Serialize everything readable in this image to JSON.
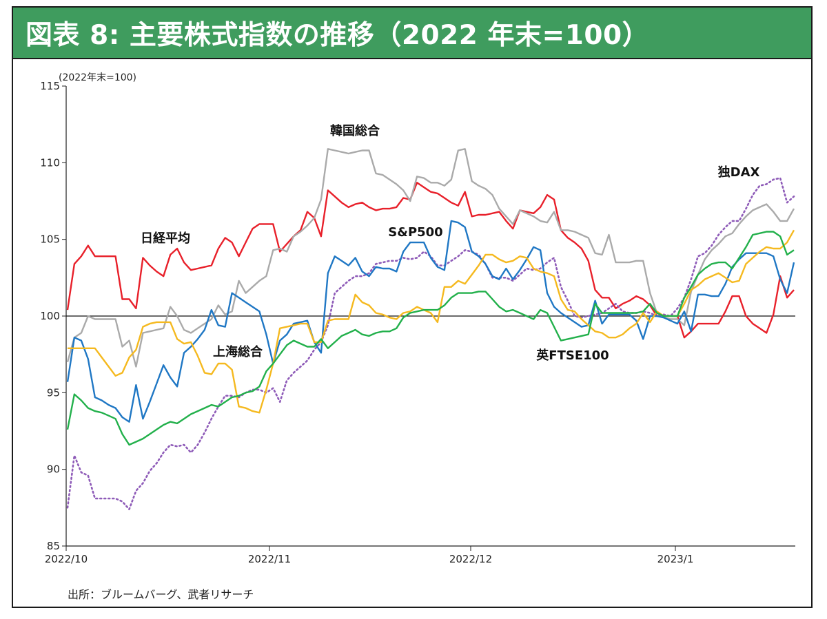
{
  "header": {
    "title": "図表 8: 主要株式指数の推移（2022 年末=100）"
  },
  "source": "出所：ブルームバーグ、武者リサーチ",
  "chart_data": {
    "type": "line",
    "unit_label": "(2022年末=100)",
    "ylim": [
      85,
      115
    ],
    "yticks": [
      "115",
      "110",
      "105",
      "100",
      "95",
      "90",
      "85"
    ],
    "x_tick_labels": [
      "2022/10",
      "2022/11",
      "2022/12",
      "2023/1"
    ],
    "baseline": 100,
    "annotations": [
      "韓国総合",
      "独DAX",
      "日経平均",
      "S&P500",
      "上海総合",
      "英FTSE100"
    ],
    "series": [
      {
        "name": "日経平均",
        "color": "#e8202a",
        "style": "solid",
        "values": [
          100.4,
          103.4,
          103.9,
          104.6,
          103.9,
          103.9,
          103.9,
          103.9,
          101.1,
          101.1,
          100.5,
          103.8,
          103.3,
          102.9,
          102.6,
          104.0,
          104.4,
          103.5,
          103.0,
          103.1,
          103.2,
          103.3,
          104.4,
          105.1,
          104.8,
          103.9,
          104.8,
          105.7,
          106.0,
          106.0,
          106.0,
          104.2,
          104.7,
          105.2,
          105.6,
          106.8,
          106.4,
          105.2,
          108.2,
          107.8,
          107.4,
          107.1,
          107.3,
          107.4,
          107.1,
          106.9,
          107.0,
          107.0,
          107.1,
          107.7,
          107.6,
          108.7,
          108.4,
          108.1,
          108.0,
          107.7,
          107.4,
          107.2,
          108.1,
          106.5,
          106.6,
          106.6,
          106.7,
          106.8,
          106.2,
          105.7,
          106.9,
          106.8,
          106.7,
          107.1,
          107.9,
          107.6,
          105.6,
          105.1,
          104.8,
          104.4,
          103.6,
          101.7,
          101.2,
          101.2,
          100.5,
          100.8,
          101.0,
          101.3,
          101.1,
          100.7,
          100.0,
          100.0,
          100.0,
          100.0,
          98.6,
          99.0,
          99.5,
          99.5,
          99.5,
          99.5,
          100.3,
          101.3,
          101.3,
          100.0,
          99.5,
          99.2,
          98.9,
          100.1,
          102.6,
          101.2,
          101.7
        ]
      },
      {
        "name": "韓国総合",
        "color": "#aaaaaa",
        "style": "solid",
        "values": [
          97.0,
          98.6,
          98.9,
          100.0,
          99.8,
          99.8,
          99.8,
          99.8,
          98.0,
          98.4,
          96.7,
          98.9,
          99.0,
          99.1,
          99.2,
          100.6,
          100.0,
          99.1,
          98.9,
          99.2,
          99.5,
          99.8,
          100.7,
          100.1,
          100.3,
          102.3,
          101.5,
          101.9,
          102.3,
          102.6,
          104.3,
          104.4,
          104.2,
          105.2,
          105.5,
          105.9,
          106.4,
          107.6,
          110.9,
          110.8,
          110.7,
          110.6,
          110.7,
          110.8,
          110.8,
          109.3,
          109.2,
          108.9,
          108.6,
          108.2,
          107.5,
          109.1,
          109.0,
          108.7,
          108.7,
          108.5,
          108.9,
          110.8,
          110.9,
          108.8,
          108.5,
          108.3,
          107.9,
          107.0,
          106.5,
          106.0,
          106.9,
          106.7,
          106.5,
          106.2,
          106.1,
          106.8,
          105.6,
          105.6,
          105.5,
          105.3,
          105.1,
          104.1,
          104.0,
          105.3,
          103.5,
          103.5,
          103.5,
          103.6,
          103.6,
          101.5,
          100.2,
          99.9,
          99.8,
          99.8,
          99.4,
          101.6,
          102.7,
          103.7,
          104.3,
          104.7,
          105.2,
          105.4,
          106.0,
          106.5,
          106.9,
          107.1,
          107.3,
          106.8,
          106.2,
          106.2,
          107.0
        ]
      },
      {
        "name": "独DAX",
        "color": "#8e5bb8",
        "style": "dotted",
        "values": [
          87.5,
          90.9,
          89.8,
          89.6,
          88.1,
          88.1,
          88.1,
          88.1,
          87.9,
          87.4,
          88.6,
          89.1,
          89.9,
          90.4,
          91.1,
          91.6,
          91.5,
          91.6,
          91.1,
          91.6,
          92.4,
          93.3,
          94.1,
          94.8,
          94.8,
          94.7,
          95.0,
          95.2,
          95.2,
          95.0,
          95.3,
          94.4,
          95.8,
          96.3,
          96.7,
          97.1,
          97.8,
          98.3,
          99.4,
          101.5,
          101.9,
          102.3,
          102.6,
          102.6,
          102.8,
          103.4,
          103.5,
          103.6,
          103.6,
          103.8,
          103.7,
          103.8,
          104.2,
          103.9,
          103.3,
          103.3,
          103.6,
          103.9,
          104.3,
          104.2,
          104.0,
          103.4,
          102.5,
          102.5,
          102.5,
          102.3,
          102.7,
          103.1,
          103.0,
          103.1,
          103.5,
          103.8,
          101.9,
          101.0,
          100.0,
          99.9,
          100.0,
          100.1,
          100.2,
          100.5,
          100.8,
          100.3,
          100.2,
          100.2,
          100.3,
          100.2,
          100.0,
          100.1,
          100.0,
          100.5,
          101.2,
          102.4,
          103.9,
          104.1,
          104.6,
          105.3,
          105.8,
          106.2,
          106.2,
          107.0,
          107.9,
          108.5,
          108.6,
          108.9,
          109.0,
          107.4,
          107.8
        ]
      },
      {
        "name": "S&P500",
        "color": "#1f77c4",
        "style": "solid",
        "values": [
          95.7,
          98.6,
          98.4,
          97.2,
          94.7,
          94.5,
          94.2,
          94.0,
          93.4,
          93.1,
          95.5,
          93.3,
          94.4,
          95.6,
          96.8,
          96.0,
          95.4,
          97.6,
          98.0,
          98.5,
          99.1,
          100.4,
          99.4,
          99.3,
          101.5,
          101.2,
          100.9,
          100.6,
          100.3,
          98.8,
          96.9,
          98.4,
          98.8,
          99.5,
          99.6,
          99.7,
          98.3,
          97.6,
          102.8,
          103.9,
          103.6,
          103.3,
          103.8,
          102.9,
          102.6,
          103.2,
          103.1,
          103.1,
          102.9,
          104.2,
          104.8,
          104.8,
          104.8,
          103.8,
          103.2,
          103.0,
          106.2,
          106.1,
          105.8,
          104.2,
          103.9,
          103.4,
          102.6,
          102.4,
          103.1,
          102.4,
          103.0,
          103.7,
          104.5,
          104.3,
          101.5,
          100.6,
          100.2,
          99.9,
          99.6,
          99.3,
          99.4,
          101.0,
          99.5,
          100.1,
          100.1,
          100.1,
          100.1,
          99.7,
          98.5,
          100.0,
          100.0,
          99.9,
          99.7,
          99.5,
          100.3,
          99.0,
          101.4,
          101.4,
          101.3,
          101.3,
          102.1,
          103.2,
          103.7,
          104.1,
          104.1,
          104.1,
          104.1,
          103.9,
          102.4,
          101.5,
          103.5
        ]
      },
      {
        "name": "上海総合",
        "color": "#f5b91f",
        "style": "solid",
        "values": [
          97.9,
          97.9,
          97.9,
          97.9,
          97.9,
          97.3,
          96.7,
          96.1,
          96.3,
          97.3,
          97.8,
          99.3,
          99.5,
          99.6,
          99.6,
          99.6,
          98.5,
          98.2,
          98.3,
          97.4,
          96.3,
          96.2,
          96.9,
          96.9,
          96.5,
          94.1,
          94.0,
          93.8,
          93.7,
          95.2,
          96.9,
          99.2,
          99.3,
          99.4,
          99.5,
          99.5,
          98.3,
          98.3,
          99.7,
          99.8,
          99.8,
          99.8,
          101.4,
          100.9,
          100.7,
          100.2,
          100.1,
          99.9,
          99.8,
          100.2,
          100.3,
          100.6,
          100.4,
          100.2,
          99.6,
          101.9,
          101.9,
          102.3,
          102.1,
          102.7,
          103.3,
          104.0,
          104.0,
          103.7,
          103.5,
          103.6,
          103.9,
          103.8,
          103.1,
          102.9,
          102.8,
          102.6,
          101.1,
          100.4,
          100.3,
          99.8,
          99.4,
          99.0,
          98.9,
          98.6,
          98.6,
          98.8,
          99.2,
          99.5,
          100.2,
          99.6,
          100.3,
          100.0,
          100.0,
          100.0,
          100.8,
          101.7,
          102.0,
          102.4,
          102.6,
          102.8,
          102.5,
          102.2,
          102.3,
          103.4,
          103.8,
          104.2,
          104.5,
          104.4,
          104.4,
          104.8,
          105.6
        ]
      },
      {
        "name": "英FTSE100",
        "color": "#22b04b",
        "style": "solid",
        "values": [
          92.6,
          94.9,
          94.5,
          94.0,
          93.8,
          93.7,
          93.5,
          93.3,
          92.3,
          91.6,
          91.8,
          92.0,
          92.3,
          92.6,
          92.9,
          93.1,
          93.0,
          93.3,
          93.6,
          93.8,
          94.0,
          94.2,
          94.1,
          94.4,
          94.7,
          94.8,
          95.0,
          95.1,
          95.4,
          96.4,
          96.9,
          97.5,
          98.1,
          98.4,
          98.2,
          98.0,
          98.0,
          98.5,
          97.9,
          98.3,
          98.7,
          98.9,
          99.1,
          98.8,
          98.7,
          98.9,
          99.0,
          99.0,
          99.2,
          99.9,
          100.2,
          100.3,
          100.4,
          100.4,
          100.4,
          100.7,
          101.2,
          101.5,
          101.5,
          101.5,
          101.6,
          101.6,
          101.1,
          100.6,
          100.3,
          100.4,
          100.2,
          100.0,
          99.8,
          100.4,
          100.2,
          99.3,
          98.4,
          98.5,
          98.6,
          98.7,
          98.8,
          100.8,
          100.2,
          100.2,
          100.2,
          100.2,
          100.2,
          100.2,
          100.3,
          100.8,
          100.2,
          100.0,
          100.0,
          100.0,
          101.2,
          101.9,
          102.7,
          103.1,
          103.4,
          103.5,
          103.5,
          103.1,
          103.8,
          104.5,
          105.3,
          105.4,
          105.5,
          105.5,
          105.2,
          104.0,
          104.3
        ]
      }
    ]
  }
}
